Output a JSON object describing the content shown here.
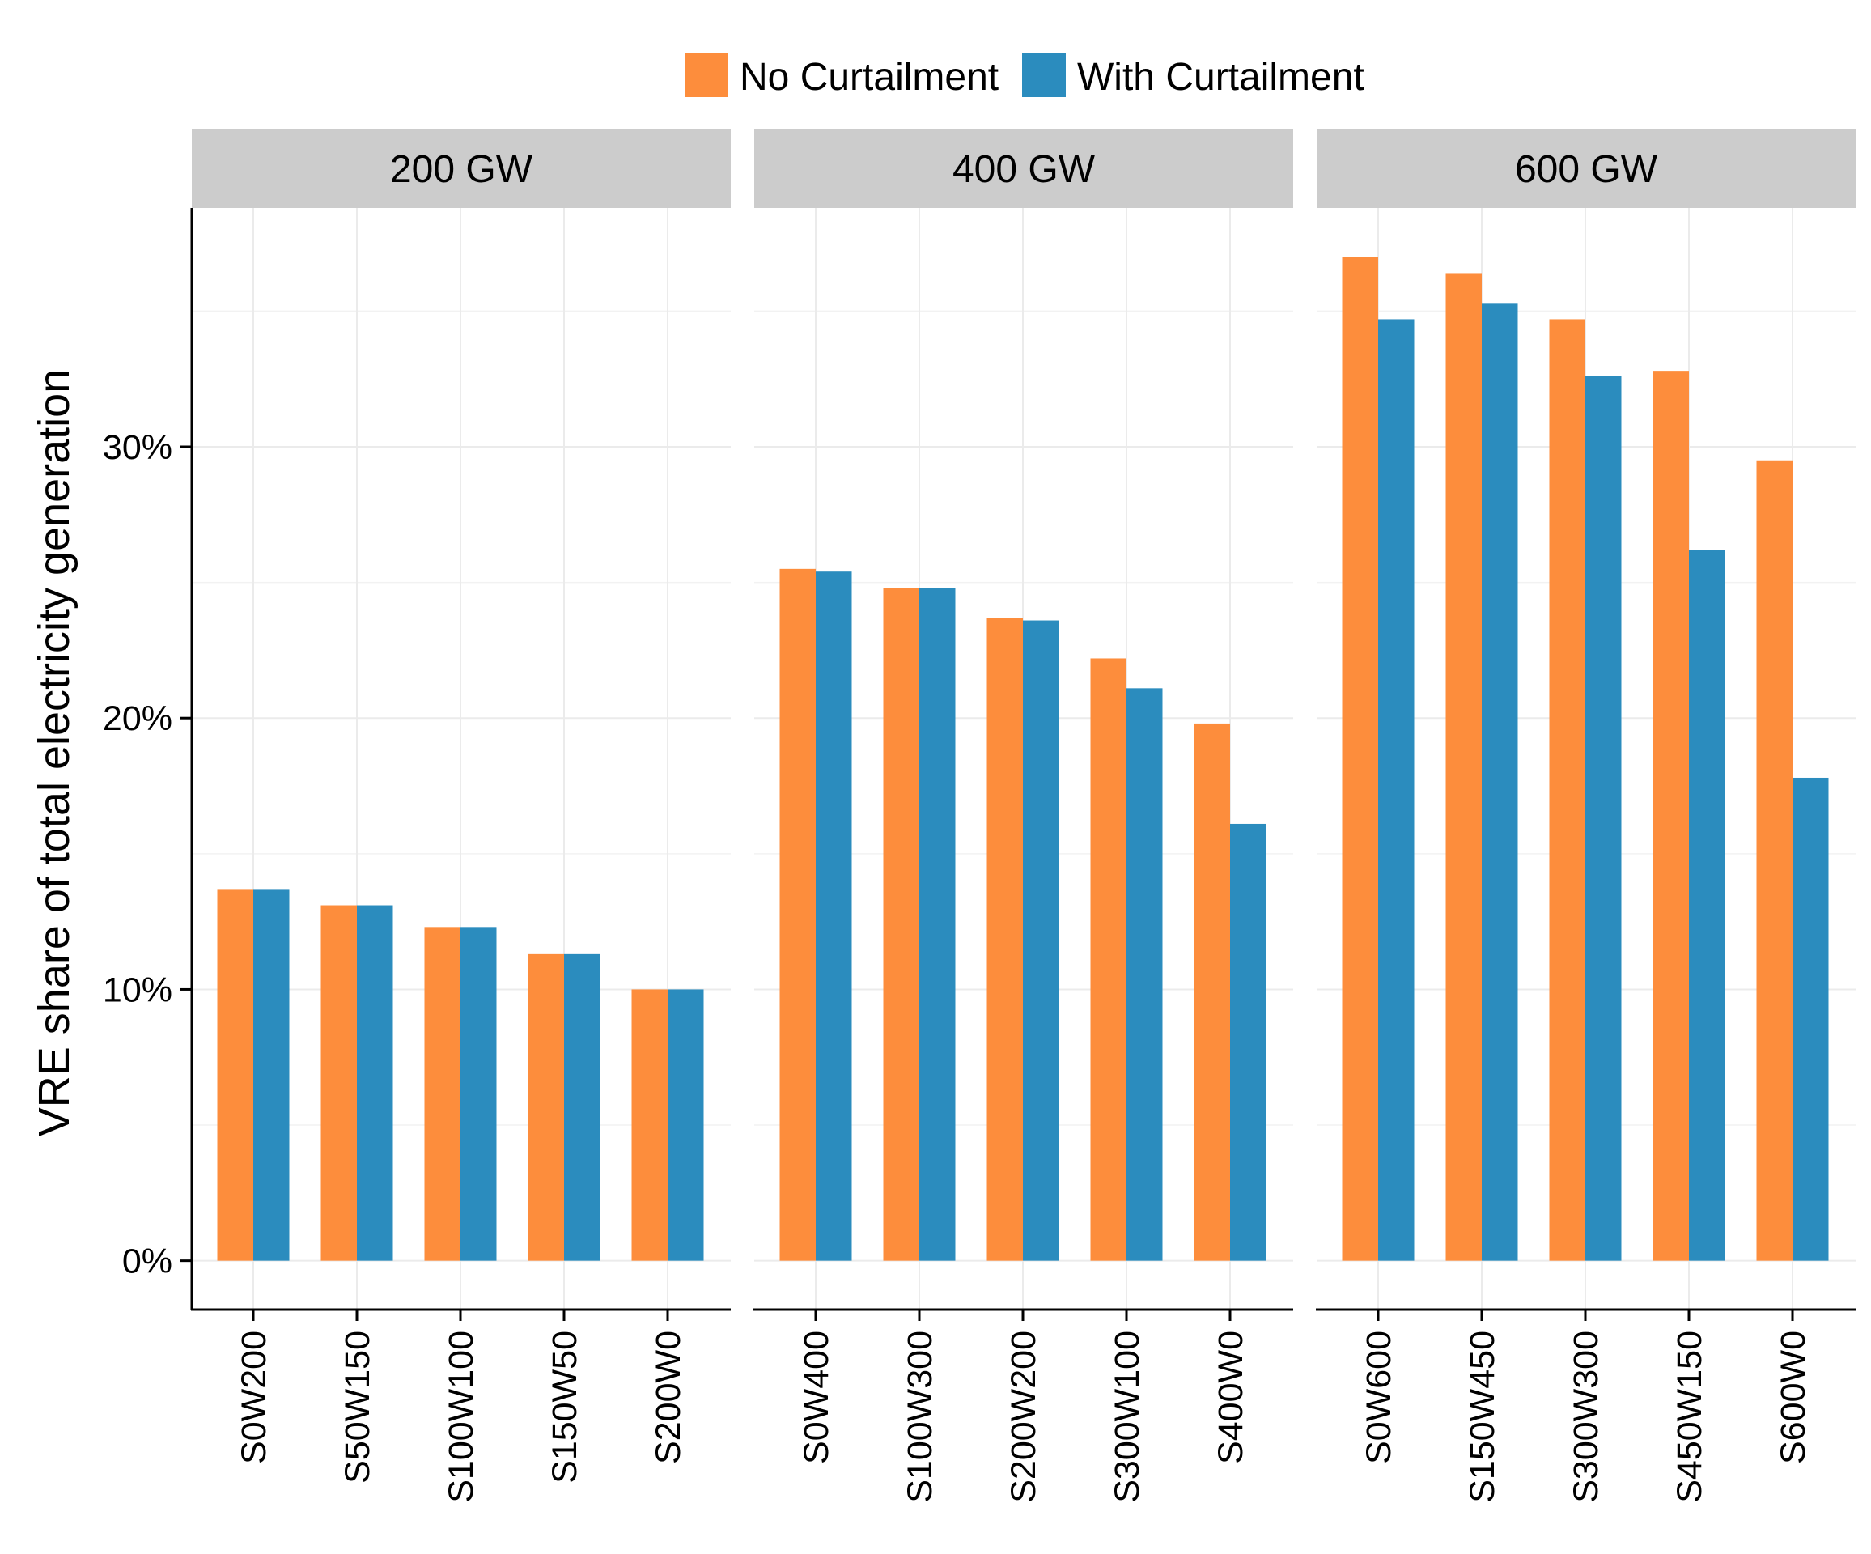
{
  "chart_data": {
    "type": "bar",
    "ylabel": "VRE share of total electricity generation",
    "ylim": [
      -0.018,
      0.388
    ],
    "y_ticks": [
      0,
      0.1,
      0.2,
      0.3
    ],
    "y_tick_labels": [
      "0%",
      "10%",
      "20%",
      "30%"
    ],
    "grid": true,
    "legend_position": "top",
    "series": [
      {
        "name": "No Curtailment",
        "color": "#FD8D3C"
      },
      {
        "name": "With Curtailment",
        "color": "#2B8CBE"
      }
    ],
    "panels": [
      {
        "title": "200 GW",
        "categories": [
          "S0W200",
          "S50W150",
          "S100W100",
          "S150W50",
          "S200W0"
        ],
        "values": {
          "No Curtailment": [
            0.137,
            0.131,
            0.123,
            0.113,
            0.1
          ],
          "With Curtailment": [
            0.137,
            0.131,
            0.123,
            0.113,
            0.1
          ]
        }
      },
      {
        "title": "400 GW",
        "categories": [
          "S0W400",
          "S100W300",
          "S200W200",
          "S300W100",
          "S400W0"
        ],
        "values": {
          "No Curtailment": [
            0.255,
            0.248,
            0.237,
            0.222,
            0.198
          ],
          "With Curtailment": [
            0.254,
            0.248,
            0.236,
            0.211,
            0.161
          ]
        }
      },
      {
        "title": "600 GW",
        "categories": [
          "S0W600",
          "S150W450",
          "S300W300",
          "S450W150",
          "S600W0"
        ],
        "values": {
          "No Curtailment": [
            0.37,
            0.364,
            0.347,
            0.328,
            0.295
          ],
          "With Curtailment": [
            0.347,
            0.353,
            0.326,
            0.262,
            0.178
          ]
        }
      }
    ]
  }
}
